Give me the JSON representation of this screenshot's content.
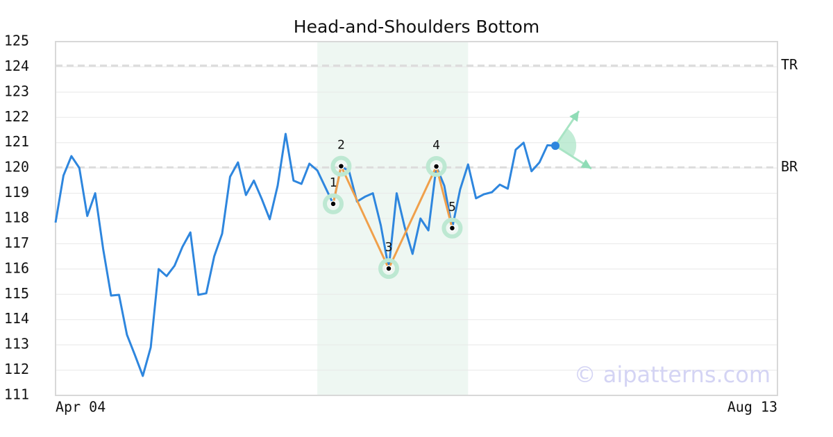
{
  "chart_data": {
    "type": "line",
    "title": "Head-and-Shoulders Bottom",
    "categories": [
      "Apr 04",
      null,
      null,
      null,
      null,
      null,
      null,
      null,
      null,
      null,
      null,
      null,
      null,
      null,
      null,
      null,
      null,
      null,
      null,
      null,
      null,
      null,
      null,
      null,
      null,
      null,
      null,
      null,
      null,
      null,
      null,
      null,
      null,
      null,
      null,
      null,
      null,
      null,
      null,
      null,
      null,
      null,
      null,
      null,
      null,
      null,
      null,
      null,
      null,
      null,
      null,
      null,
      null,
      null,
      null,
      null,
      null,
      null,
      null,
      null,
      null,
      null,
      null,
      null,
      null,
      null,
      null,
      null,
      null,
      null,
      null,
      null,
      null,
      null,
      null,
      null,
      null,
      null,
      null,
      null,
      null,
      null,
      null,
      null,
      null,
      null,
      null,
      null,
      null,
      null,
      null,
      "Aug 13"
    ],
    "series": [
      {
        "color": "#2e86de",
        "values": [
          117.84,
          119.7,
          120.47,
          120.0,
          118.1,
          119.0,
          116.8,
          114.95,
          114.98,
          113.4,
          112.6,
          111.77,
          112.9,
          116.0,
          115.72,
          116.13,
          116.88,
          117.45,
          114.98,
          115.04,
          116.5,
          117.4,
          119.65,
          120.22,
          118.93,
          119.5,
          118.77,
          117.97,
          119.3,
          121.35,
          119.5,
          119.37,
          120.17,
          119.9,
          119.24,
          118.58,
          120.07,
          119.87,
          118.67,
          118.86,
          119.0,
          117.73,
          116.02,
          119.0,
          117.67,
          116.6,
          118.0,
          117.53,
          120.06,
          119.3,
          117.62,
          119.15,
          120.14,
          118.8,
          118.96,
          119.04,
          119.34,
          119.18,
          120.72,
          121.0,
          119.87,
          120.22,
          120.9,
          120.88,
          null,
          null,
          null,
          null,
          null,
          null,
          null,
          null,
          null,
          null,
          null,
          null,
          null,
          null,
          null,
          null,
          null,
          null,
          null,
          null,
          null,
          null,
          null,
          null,
          null,
          null,
          null,
          null
        ]
      }
    ],
    "pattern": {
      "color": "#f0a04b",
      "highlight": [
        33,
        52
      ],
      "points": [
        {
          "label": "1",
          "index": 35,
          "value": 118.58
        },
        {
          "label": "2",
          "index": 36,
          "value": 120.07
        },
        {
          "label": "3",
          "index": 42,
          "value": 116.02
        },
        {
          "label": "4",
          "index": 48,
          "value": 120.06
        },
        {
          "label": "5",
          "index": 50,
          "value": 117.62
        }
      ]
    },
    "levels": [
      {
        "label": "TR",
        "value": 124.05
      },
      {
        "label": "BR",
        "value": 120.02
      }
    ],
    "ylim": [
      111,
      125
    ],
    "yticks": [
      111,
      112,
      113,
      114,
      115,
      116,
      117,
      118,
      119,
      120,
      121,
      122,
      123,
      124,
      125
    ],
    "grid": true,
    "watermark": "© aipatterns.com"
  }
}
